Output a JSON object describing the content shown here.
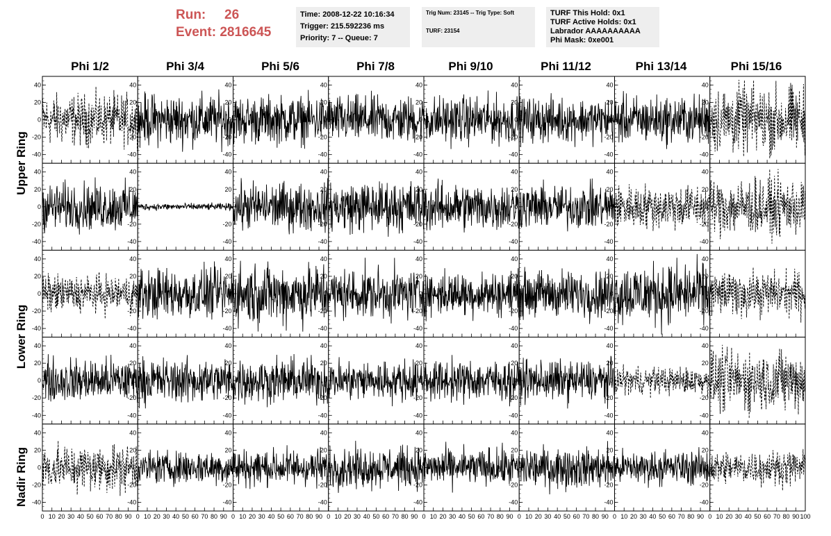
{
  "header": {
    "run_label": "Run:",
    "run_value": "26",
    "event_label": "Event:",
    "event_value": "2816645"
  },
  "info1": {
    "time": "Time: 2008-12-22 10:16:34",
    "trigger": "Trigger: 215.592236 ms",
    "priority": "Priority: 7 -- Queue: 7"
  },
  "info2": {
    "trig": "Trig Num: 23145 -- Trig Type: Soft",
    "turf": "TURF: 23154"
  },
  "info3": {
    "hold": "TURF This Hold: 0x1",
    "active": "TURF Active Holds: 0x1",
    "labrador": "Labrador AAAAAAAAAA",
    "mask": "Phi Mask: 0xe001"
  },
  "chart_data": {
    "type": "line",
    "columns": [
      "Phi 1/2",
      "Phi 3/4",
      "Phi 5/6",
      "Phi 7/8",
      "Phi 9/10",
      "Phi 11/12",
      "Phi 13/14",
      "Phi 15/16"
    ],
    "rows": [
      "Upper Ring",
      "Upper Ring",
      "Lower Ring",
      "Lower Ring",
      "Nadir Ring"
    ],
    "row_labels": [
      "Upper Ring",
      "Lower Ring",
      "Nadir Ring"
    ],
    "xlim": [
      0,
      100
    ],
    "ylim": [
      -50,
      50
    ],
    "yticks": [
      -40,
      -20,
      0,
      20,
      40
    ],
    "xtick_labels": [
      "0",
      "10",
      "20",
      "30",
      "40",
      "50",
      "60",
      "70",
      "80",
      "90",
      "100"
    ],
    "amplitudes": [
      [
        15,
        15,
        14,
        14,
        14,
        13,
        14,
        20
      ],
      [
        14,
        2,
        14,
        15,
        14,
        13,
        13,
        17
      ],
      [
        11,
        15,
        18,
        15,
        13,
        14,
        18,
        13
      ],
      [
        13,
        13,
        13,
        12,
        12,
        12,
        8,
        18
      ],
      [
        14,
        10,
        11,
        12,
        11,
        12,
        10,
        10
      ]
    ],
    "dashed": [
      [
        true,
        false,
        false,
        false,
        false,
        false,
        false,
        true
      ],
      [
        false,
        false,
        false,
        false,
        false,
        false,
        true,
        true
      ],
      [
        true,
        false,
        false,
        false,
        false,
        false,
        false,
        true
      ],
      [
        false,
        false,
        false,
        false,
        false,
        false,
        true,
        true
      ],
      [
        true,
        false,
        false,
        false,
        false,
        false,
        false,
        true
      ]
    ]
  }
}
